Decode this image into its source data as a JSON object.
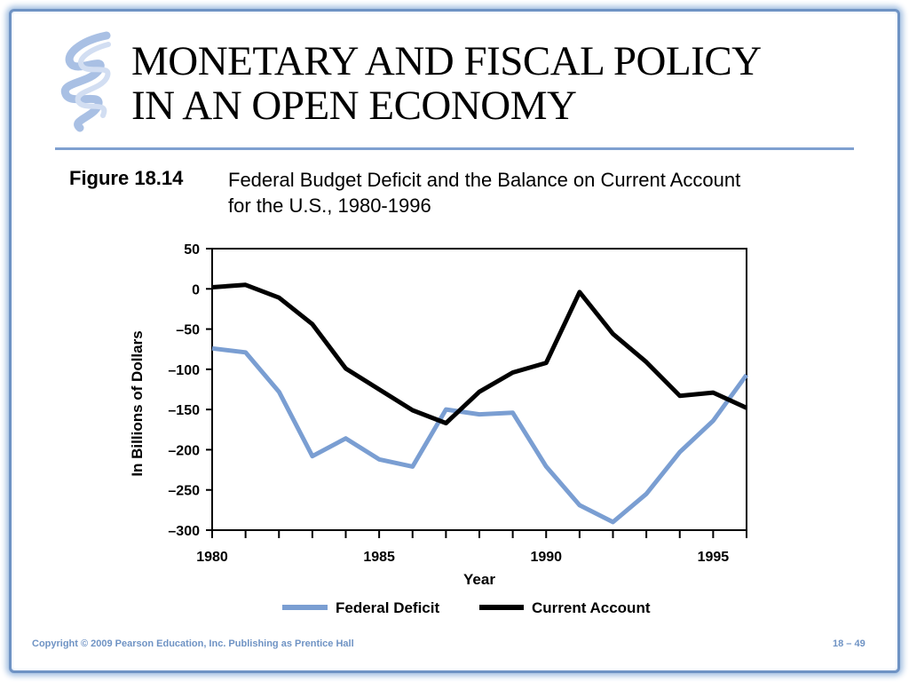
{
  "slide": {
    "title_line1": "MONETARY AND FISCAL POLICY",
    "title_line2": "IN AN OPEN ECONOMY",
    "figure_label": "Figure 18.14",
    "figure_caption": "Federal Budget Deficit and the Balance on Current Account for the U.S., 1980-1996",
    "footer_copyright": "Copyright © 2009 Pearson Education, Inc. Publishing as Prentice Hall",
    "footer_page": "18 – 49"
  },
  "chart_data": {
    "type": "line",
    "title": "",
    "xlabel": "Year",
    "ylabel": "In Billions of Dollars",
    "xlim": [
      1980,
      1996
    ],
    "ylim": [
      -300,
      50
    ],
    "x_ticks": [
      1980,
      1985,
      1990,
      1995
    ],
    "x_tick_labels": [
      "1980",
      "1985",
      "1990",
      "1995"
    ],
    "y_ticks": [
      50,
      0,
      -50,
      -100,
      -150,
      -200,
      -250,
      -300
    ],
    "y_tick_labels": [
      "50",
      "0",
      "–50",
      "–100",
      "–150",
      "–200",
      "–250",
      "–300"
    ],
    "grid": false,
    "legend_position": "bottom-center",
    "x": [
      1980,
      1981,
      1982,
      1983,
      1984,
      1985,
      1986,
      1987,
      1988,
      1989,
      1990,
      1991,
      1992,
      1993,
      1994,
      1995,
      1996
    ],
    "series": [
      {
        "name": "Federal Deficit",
        "color": "#7a9ed2",
        "values": [
          -74,
          -79,
          -128,
          -208,
          -186,
          -212,
          -221,
          -150,
          -156,
          -154,
          -221,
          -269,
          -290,
          -255,
          -203,
          -164,
          -107
        ]
      },
      {
        "name": "Current Account",
        "color": "#000000",
        "values": [
          2,
          5,
          -11,
          -44,
          -99,
          -125,
          -151,
          -167,
          -128,
          -104,
          -92,
          -4,
          -56,
          -91,
          -133,
          -129,
          -148
        ]
      }
    ]
  }
}
